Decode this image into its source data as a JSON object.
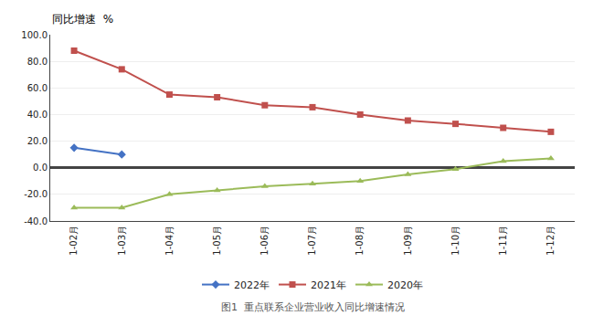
{
  "chart_data": {
    "type": "line",
    "ylabel": "同比增速  %",
    "caption": "图1  重点联系企业营业收入同比增速情况",
    "categories": [
      "1-02月",
      "1-03月",
      "1-04月",
      "1-05月",
      "1-06月",
      "1-07月",
      "1-08月",
      "1-09月",
      "1-10月",
      "1-11月",
      "1-12月"
    ],
    "series": [
      {
        "name": "2022年",
        "color": "#4472C4",
        "marker": "diamond",
        "values": [
          15.0,
          10.0,
          null,
          null,
          null,
          null,
          null,
          null,
          null,
          null,
          null
        ]
      },
      {
        "name": "2021年",
        "color": "#C0504D",
        "marker": "square",
        "values": [
          88.0,
          74.0,
          55.0,
          53.0,
          47.0,
          45.5,
          40.0,
          35.5,
          33.0,
          30.0,
          27.0
        ]
      },
      {
        "name": "2020年",
        "color": "#9BBB59",
        "marker": "triangle-up",
        "values": [
          -30.0,
          -30.0,
          -20.0,
          -17.0,
          -14.0,
          -12.0,
          -10.0,
          -5.0,
          -1.0,
          5.0,
          7.0
        ]
      }
    ],
    "ylim": [
      -40.0,
      100.0
    ],
    "yticks": [
      {
        "value": -40,
        "label": "-40.0"
      },
      {
        "value": -20,
        "label": "-20.0"
      },
      {
        "value": 0,
        "label": "0.0"
      },
      {
        "value": 20,
        "label": "20.0"
      },
      {
        "value": 40,
        "label": "40.0"
      },
      {
        "value": 60,
        "label": "60.0"
      },
      {
        "value": 80,
        "label": "80.0"
      },
      {
        "value": 100,
        "label": "100.0"
      }
    ],
    "grid": true,
    "legend": "bottom"
  }
}
